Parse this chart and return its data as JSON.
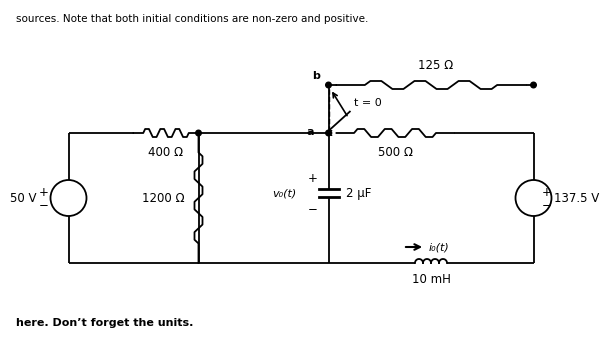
{
  "bg_color": "#ffffff",
  "line_color": "#000000",
  "labels": {
    "50V": "50 V",
    "137_5V": "137.5 V",
    "400ohm": "400 Ω",
    "1200ohm": "1200 Ω",
    "500ohm": "500 Ω",
    "125ohm": "125 Ω",
    "2uF": "2 μF",
    "10mH": "10 mH",
    "vo": "v₀(t)",
    "io": "i₀(t)",
    "t0": "t = 0",
    "node_a": "a",
    "node_b": "b"
  },
  "top_text": "sources. Note that both initial conditions are non-zero and positive.",
  "bot_text": "here. Don’t forget the units."
}
